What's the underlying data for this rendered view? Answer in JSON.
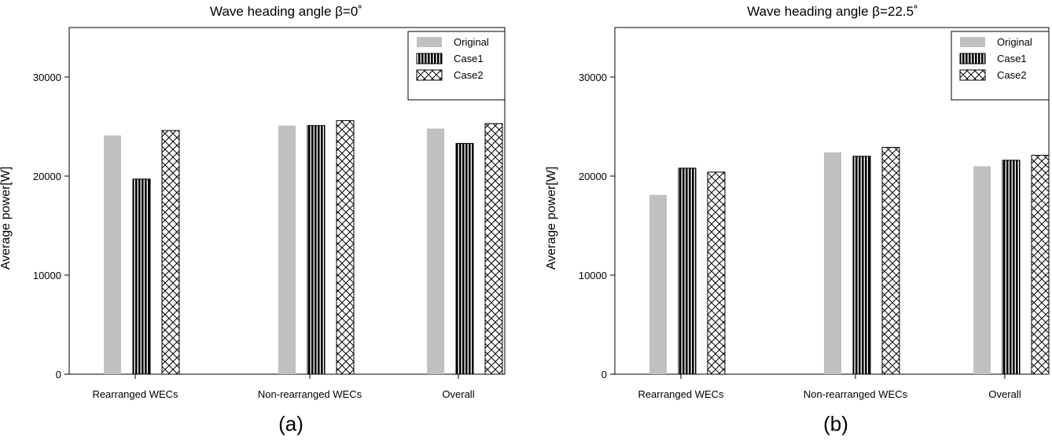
{
  "chart_data": [
    {
      "type": "bar",
      "title": "Wave heading angle β=0˚",
      "panel_label": "(a)",
      "xlabel": "",
      "ylabel": "Average power[W]",
      "categories": [
        "Rearranged WECs",
        "Non-rearranged WECs",
        "Overall"
      ],
      "series": [
        {
          "name": "Original",
          "values": [
            24100,
            25100,
            24800
          ],
          "pattern": "solid-gray",
          "color": "#c0c0c0"
        },
        {
          "name": "Case1",
          "values": [
            19700,
            25100,
            23300
          ],
          "pattern": "vertical-stripes",
          "color": "#000000"
        },
        {
          "name": "Case2",
          "values": [
            24600,
            25600,
            25300
          ],
          "pattern": "crosshatch",
          "color": "#000000"
        }
      ],
      "ylim": [
        0,
        35000
      ],
      "yticks": [
        0,
        10000,
        20000,
        30000
      ],
      "legend": "top-right",
      "grid": false
    },
    {
      "type": "bar",
      "title": "Wave heading angle β=22.5˚",
      "panel_label": "(b)",
      "xlabel": "",
      "ylabel": "Average power[W]",
      "categories": [
        "Rearranged WECs",
        "Non-rearranged WECs",
        "Overall"
      ],
      "series": [
        {
          "name": "Original",
          "values": [
            18100,
            22400,
            21000
          ],
          "pattern": "solid-gray",
          "color": "#c0c0c0"
        },
        {
          "name": "Case1",
          "values": [
            20800,
            22000,
            21600
          ],
          "pattern": "vertical-stripes",
          "color": "#000000"
        },
        {
          "name": "Case2",
          "values": [
            20400,
            22900,
            22100
          ],
          "pattern": "crosshatch",
          "color": "#000000"
        }
      ],
      "ylim": [
        0,
        35000
      ],
      "yticks": [
        0,
        10000,
        20000,
        30000
      ],
      "legend": "top-right",
      "grid": false
    }
  ]
}
